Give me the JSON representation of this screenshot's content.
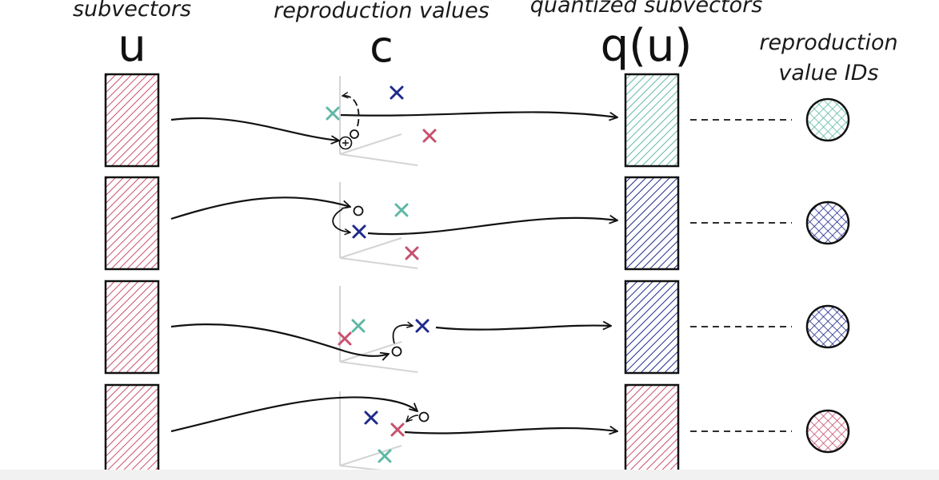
{
  "headings": {
    "subvectors": "subvectors",
    "subvectors_symbol": "u",
    "reproduction_values": "reproduction values",
    "reproduction_symbol": "c",
    "quantized_subvectors": "quantized subvectors",
    "quantized_symbol": "q(u)",
    "ids_line1": "reproduction",
    "ids_line2": "value IDs"
  },
  "colors": {
    "pink": "#c8506e",
    "teal": "#5fb8a4",
    "navy": "#1f2a8c",
    "ink": "#111111",
    "axis": "#d4d4d4"
  },
  "rows": [
    {
      "assigned": "teal"
    },
    {
      "assigned": "navy"
    },
    {
      "assigned": "navy"
    },
    {
      "assigned": "pink"
    }
  ],
  "icons": {
    "cross": "cross-marker-icon",
    "circle": "query-point-icon",
    "plus": "plus-circle-icon"
  }
}
